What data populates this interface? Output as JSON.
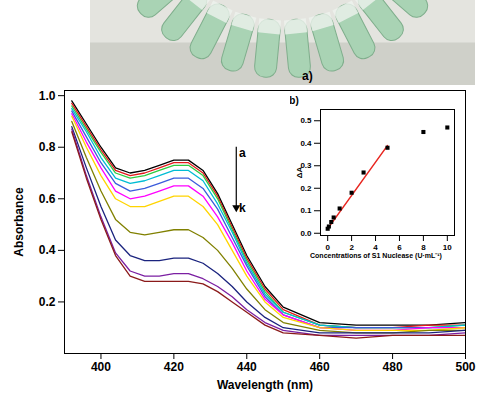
{
  "photo": {
    "label": "a)"
  },
  "chart_data": [
    {
      "type": "line",
      "x_label": "Wavelength (nm)",
      "y_label": "Absorbance",
      "x": [
        392,
        396,
        400,
        404,
        408,
        412,
        416,
        420,
        424,
        428,
        432,
        436,
        440,
        445,
        450,
        460,
        470,
        480,
        490,
        500
      ],
      "xlim": [
        390,
        500
      ],
      "xticks": [
        400,
        420,
        440,
        460,
        480,
        500
      ],
      "ylim": [
        0,
        1.02
      ],
      "yticks": [
        0.2,
        0.4,
        0.6,
        0.8,
        {
          "value": 1,
          "label": "1.0"
        }
      ],
      "line_style": "solid",
      "series": [
        {
          "name": "a",
          "color": "#000000",
          "values": [
            0.98,
            0.89,
            0.8,
            0.72,
            0.7,
            0.71,
            0.73,
            0.75,
            0.75,
            0.71,
            0.62,
            0.5,
            0.38,
            0.26,
            0.18,
            0.12,
            0.11,
            0.11,
            0.11,
            0.12
          ]
        },
        {
          "color": "#e41a1c",
          "values": [
            0.97,
            0.88,
            0.79,
            0.71,
            0.69,
            0.7,
            0.72,
            0.74,
            0.74,
            0.7,
            0.61,
            0.49,
            0.37,
            0.25,
            0.17,
            0.11,
            0.1,
            0.1,
            0.11,
            0.11
          ]
        },
        {
          "color": "#2ecc40",
          "values": [
            0.96,
            0.87,
            0.78,
            0.7,
            0.68,
            0.69,
            0.71,
            0.73,
            0.73,
            0.69,
            0.6,
            0.48,
            0.36,
            0.24,
            0.16,
            0.11,
            0.1,
            0.1,
            0.1,
            0.11
          ]
        },
        {
          "color": "#00bcd4",
          "values": [
            0.95,
            0.86,
            0.76,
            0.68,
            0.66,
            0.67,
            0.69,
            0.71,
            0.71,
            0.67,
            0.58,
            0.47,
            0.35,
            0.23,
            0.16,
            0.11,
            0.1,
            0.1,
            0.1,
            0.11
          ]
        },
        {
          "color": "#3b5bdb",
          "values": [
            0.94,
            0.84,
            0.74,
            0.66,
            0.63,
            0.64,
            0.66,
            0.68,
            0.68,
            0.64,
            0.56,
            0.45,
            0.34,
            0.22,
            0.15,
            0.1,
            0.1,
            0.1,
            0.1,
            0.1
          ]
        },
        {
          "color": "#ff00ff",
          "values": [
            0.93,
            0.82,
            0.72,
            0.63,
            0.6,
            0.61,
            0.63,
            0.65,
            0.65,
            0.61,
            0.53,
            0.43,
            0.32,
            0.21,
            0.15,
            0.1,
            0.09,
            0.09,
            0.1,
            0.1
          ]
        },
        {
          "color": "#ffd400",
          "values": [
            0.92,
            0.8,
            0.69,
            0.6,
            0.57,
            0.57,
            0.59,
            0.61,
            0.61,
            0.57,
            0.5,
            0.4,
            0.3,
            0.2,
            0.14,
            0.1,
            0.09,
            0.09,
            0.09,
            0.1
          ]
        },
        {
          "color": "#808000",
          "values": [
            0.9,
            0.76,
            0.63,
            0.52,
            0.47,
            0.46,
            0.47,
            0.48,
            0.48,
            0.45,
            0.4,
            0.33,
            0.25,
            0.17,
            0.12,
            0.09,
            0.08,
            0.08,
            0.09,
            0.09
          ]
        },
        {
          "color": "#1a237e",
          "values": [
            0.88,
            0.72,
            0.57,
            0.44,
            0.38,
            0.36,
            0.36,
            0.37,
            0.37,
            0.35,
            0.31,
            0.26,
            0.2,
            0.14,
            0.1,
            0.08,
            0.08,
            0.08,
            0.08,
            0.09
          ]
        },
        {
          "color": "#7b1fa2",
          "values": [
            0.87,
            0.69,
            0.53,
            0.39,
            0.32,
            0.3,
            0.3,
            0.31,
            0.31,
            0.29,
            0.26,
            0.22,
            0.17,
            0.12,
            0.09,
            0.07,
            0.07,
            0.07,
            0.07,
            0.08
          ]
        },
        {
          "name": "k",
          "color": "#8b1a1a",
          "values": [
            0.86,
            0.68,
            0.52,
            0.38,
            0.3,
            0.28,
            0.28,
            0.28,
            0.28,
            0.27,
            0.24,
            0.2,
            0.16,
            0.11,
            0.08,
            0.07,
            0.06,
            0.07,
            0.07,
            0.07
          ]
        }
      ]
    },
    {
      "type": "scatter",
      "label": "b)",
      "x_label": "Concentrations of S1 Nuclease (U·mL⁻¹)",
      "y_label": "ΔA",
      "x": [
        0,
        0.1,
        0.3,
        0.5,
        1,
        2,
        3,
        5,
        8,
        10
      ],
      "values": [
        0.02,
        0.03,
        0.05,
        0.07,
        0.11,
        0.18,
        0.27,
        0.38,
        0.45,
        0.47
      ],
      "color": "#000000",
      "marker": "square",
      "fit": {
        "x": [
          0,
          5
        ],
        "values": [
          0.02,
          0.39
        ],
        "color": "#e8251f",
        "line_style": "solid"
      },
      "xlim": [
        -0.6,
        10.6
      ],
      "xticks": [
        0,
        2,
        4,
        6,
        8,
        10
      ],
      "ylim": [
        -0.01,
        0.55
      ],
      "yticks": [
        {
          "value": 0,
          "label": "0.0"
        },
        0.1,
        0.2,
        0.3,
        0.4,
        0.5
      ]
    }
  ]
}
